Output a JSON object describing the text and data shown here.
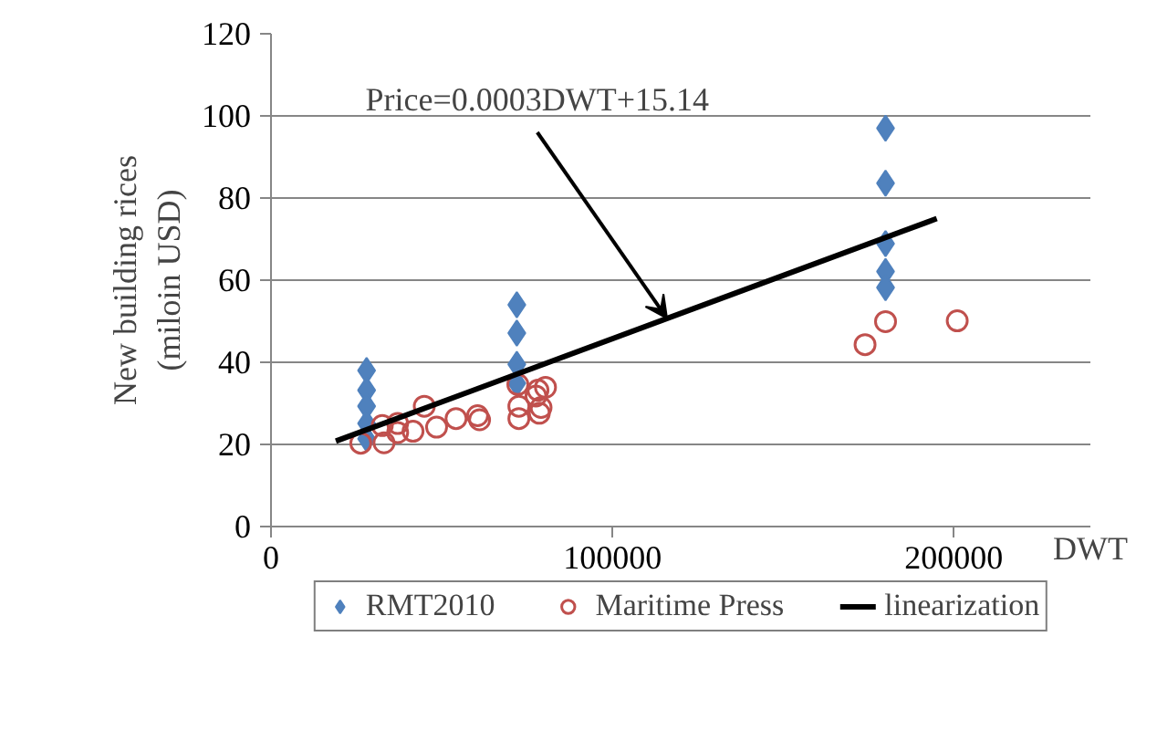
{
  "chart_data": {
    "type": "scatter",
    "ylabel": "New building rices\n(miloin USD)",
    "xlabel": "DWT",
    "xlim": [
      0,
      240000
    ],
    "xticks": [
      0,
      100000,
      200000
    ],
    "ylim": [
      0,
      120
    ],
    "yticks": [
      0,
      20,
      40,
      60,
      80,
      100,
      120
    ],
    "grid": "y",
    "legend": "bottom",
    "annotations": [
      {
        "text": "Price=0.0003DWT+15.14",
        "x": 116000,
        "y": 50.7
      }
    ],
    "series": [
      {
        "name": "RMT2010",
        "color": "#4f81bd",
        "marker": "diamond",
        "x": [
          28000,
          28000,
          28000,
          28000,
          28000,
          72000,
          72000,
          72000,
          72000,
          180000,
          180000,
          180000,
          180000,
          180000
        ],
        "values": [
          38.0,
          33.2,
          29.3,
          25.1,
          21.4,
          54.0,
          47.1,
          39.5,
          34.9,
          97,
          83.6,
          68.9,
          62.1,
          58.2
        ]
      },
      {
        "name": "Maritime Press",
        "color": "#c0504d",
        "marker": "circle",
        "x": [
          26300,
          33100,
          32600,
          37100,
          37100,
          41600,
          44900,
          48500,
          54200,
          60500,
          61100,
          72600,
          72600,
          72300,
          78600,
          79100,
          80400,
          78200,
          77600,
          180000,
          174000,
          201000
        ],
        "values": [
          20.3,
          20.4,
          24.6,
          25.1,
          22.9,
          23.2,
          29.3,
          24.2,
          26.3,
          27.0,
          26.0,
          29.3,
          26.3,
          34.6,
          27.6,
          29.0,
          33.9,
          33.2,
          31.8,
          49.9,
          44.3,
          50.1
        ]
      },
      {
        "name": "linearization",
        "color": "#000000",
        "type": "line",
        "x": [
          19000,
          195000
        ],
        "values": [
          20.8,
          75
        ]
      }
    ]
  }
}
